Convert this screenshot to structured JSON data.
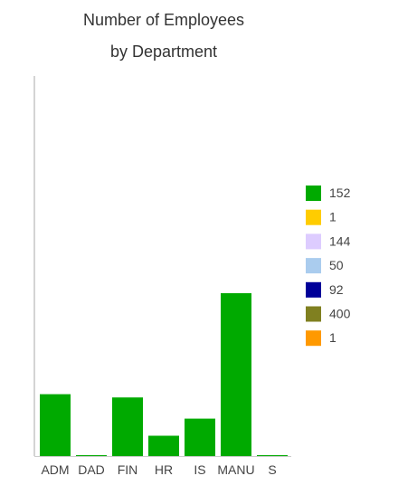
{
  "chart_data": {
    "type": "bar",
    "title_lines": [
      "Number of Employees",
      "by Department"
    ],
    "categories": [
      "ADM",
      "DAD",
      "FIN",
      "HR",
      "IS",
      "MANU",
      "S"
    ],
    "values": [
      152,
      1,
      144,
      50,
      92,
      400,
      1
    ],
    "bar_color": "#00aa00",
    "legend": [
      {
        "label": "152",
        "color": "#00aa00"
      },
      {
        "label": "1",
        "color": "#ffcc00"
      },
      {
        "label": "144",
        "color": "#ddccff"
      },
      {
        "label": "50",
        "color": "#aaccee"
      },
      {
        "label": "92",
        "color": "#000099"
      },
      {
        "label": "400",
        "color": "#808020"
      },
      {
        "label": "1",
        "color": "#ff9900"
      }
    ],
    "legend_position": "right",
    "ylim": [
      0,
      580
    ],
    "grid": false,
    "y_ticks_shown": false
  }
}
